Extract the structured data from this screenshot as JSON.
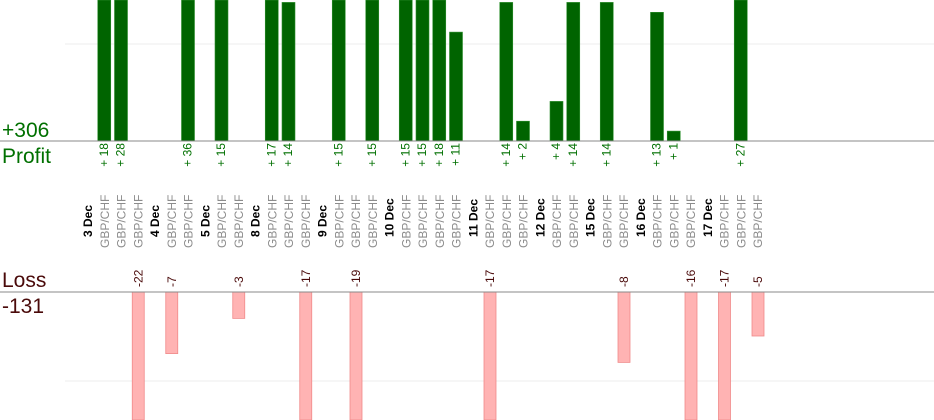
{
  "chart_data": {
    "type": "bar",
    "title": "",
    "profit_label": "Profit",
    "profit_total": "+306",
    "loss_label": "Loss",
    "loss_total": "-131",
    "gridline_units": 10,
    "colors": {
      "profit": "#006400",
      "profit_text": "#007000",
      "loss": "#ffb3b3",
      "loss_text": "#4a0a0a",
      "pair_text": "#8c8c8c"
    },
    "days": [
      {
        "date": "3 Dec",
        "trades": [
          {
            "pair": "GBP/CHF",
            "value": 18
          },
          {
            "pair": "GBP/CHF",
            "value": 28
          },
          {
            "pair": "GBP/CHF",
            "value": -22
          }
        ]
      },
      {
        "date": "4 Dec",
        "trades": [
          {
            "pair": "GBP/CHF",
            "value": -7
          },
          {
            "pair": "GBP/CHF",
            "value": 36
          }
        ]
      },
      {
        "date": "5 Dec",
        "trades": [
          {
            "pair": "GBP/CHF",
            "value": 15
          },
          {
            "pair": "GBP/CHF",
            "value": -3
          }
        ]
      },
      {
        "date": "8 Dec",
        "trades": [
          {
            "pair": "GBP/CHF",
            "value": 17
          },
          {
            "pair": "GBP/CHF",
            "value": 14
          },
          {
            "pair": "GBP/CHF",
            "value": -17
          }
        ]
      },
      {
        "date": "9 Dec",
        "trades": [
          {
            "pair": "GBP/CHF",
            "value": 15
          },
          {
            "pair": "GBP/CHF",
            "value": -19
          },
          {
            "pair": "GBP/CHF",
            "value": 15
          }
        ]
      },
      {
        "date": "10 Dec",
        "trades": [
          {
            "pair": "GBP/CHF",
            "value": 15
          },
          {
            "pair": "GBP/CHF",
            "value": 15
          },
          {
            "pair": "GBP/CHF",
            "value": 18
          },
          {
            "pair": "GBP/CHF",
            "value": 11
          }
        ]
      },
      {
        "date": "11 Dec",
        "trades": [
          {
            "pair": "GBP/CHF",
            "value": -17
          },
          {
            "pair": "GBP/CHF",
            "value": 14
          },
          {
            "pair": "GBP/CHF",
            "value": 2
          }
        ]
      },
      {
        "date": "12 Dec",
        "trades": [
          {
            "pair": "GBP/CHF",
            "value": 4
          },
          {
            "pair": "GBP/CHF",
            "value": 14
          }
        ]
      },
      {
        "date": "15 Dec",
        "trades": [
          {
            "pair": "GBP/CHF",
            "value": 14
          },
          {
            "pair": "GBP/CHF",
            "value": -8
          }
        ]
      },
      {
        "date": "16 Dec",
        "trades": [
          {
            "pair": "GBP/CHF",
            "value": 13
          },
          {
            "pair": "GBP/CHF",
            "value": 1
          },
          {
            "pair": "GBP/CHF",
            "value": -16
          }
        ]
      },
      {
        "date": "17 Dec",
        "trades": [
          {
            "pair": "GBP/CHF",
            "value": -17
          },
          {
            "pair": "GBP/CHF",
            "value": 27
          },
          {
            "pair": "GBP/CHF",
            "value": -5
          }
        ]
      }
    ]
  }
}
